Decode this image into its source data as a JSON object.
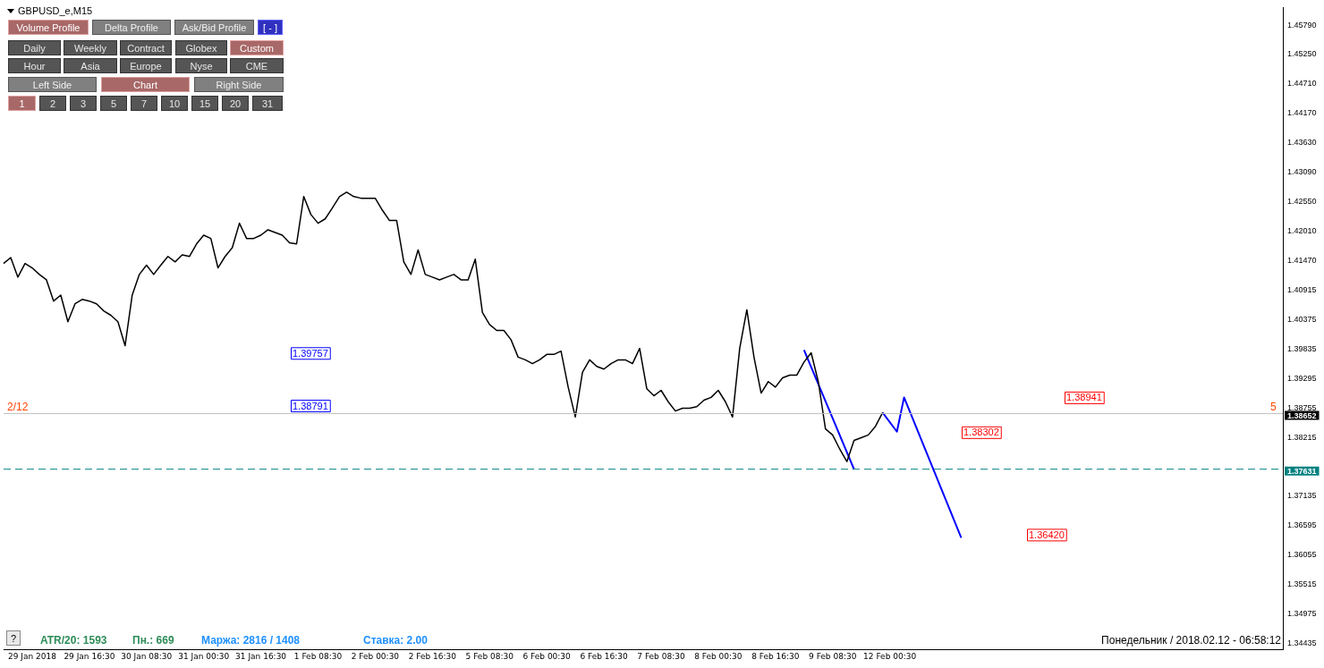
{
  "chart_data": {
    "type": "line",
    "categories": [
      null,
      null,
      null,
      null,
      "29 Jan 2018",
      null,
      null,
      null,
      null,
      null,
      null,
      null,
      "29 Jan 16:30",
      null,
      null,
      null,
      null,
      null,
      null,
      null,
      "30 Jan 08:30",
      null,
      null,
      null,
      null,
      null,
      null,
      null,
      "31 Jan 00:30",
      null,
      null,
      null,
      null,
      null,
      null,
      null,
      "31 Jan 16:30",
      null,
      null,
      null,
      null,
      null,
      null,
      null,
      "1 Feb 08:30",
      null,
      null,
      null,
      null,
      null,
      null,
      null,
      "2 Feb 00:30",
      null,
      null,
      null,
      null,
      null,
      null,
      null,
      "2 Feb 16:30",
      null,
      null,
      null,
      null,
      null,
      null,
      null,
      "5 Feb 08:30",
      null,
      null,
      null,
      null,
      null,
      null,
      null,
      "6 Feb 00:30",
      null,
      null,
      null,
      null,
      null,
      null,
      null,
      "6 Feb 16:30",
      null,
      null,
      null,
      null,
      null,
      null,
      null,
      "7 Feb 08:30",
      null,
      null,
      null,
      null,
      null,
      null,
      null,
      "8 Feb 00:30",
      null,
      null,
      null,
      null,
      null,
      null,
      null,
      "8 Feb 16:30",
      null,
      null,
      null,
      null,
      null,
      null,
      null,
      "9 Feb 08:30",
      null,
      null,
      null,
      null,
      null,
      null,
      null,
      "12 Feb 00:30",
      null,
      null,
      null,
      null,
      null,
      null,
      null,
      null,
      null,
      null,
      null,
      null,
      null,
      null,
      null,
      null,
      null,
      null,
      null,
      null,
      null,
      null,
      null,
      null,
      null,
      null,
      null,
      null,
      null,
      null,
      null,
      null,
      null,
      null,
      null,
      null,
      null,
      null,
      null,
      null,
      null,
      null,
      null,
      null,
      null,
      null,
      null,
      null,
      null,
      null,
      null,
      null,
      null,
      null,
      null
    ],
    "series": [
      {
        "color": "#000000",
        "values": [
          1.4141,
          1.4152,
          1.4116,
          1.4141,
          1.4133,
          1.4121,
          1.4111,
          1.4072,
          1.4083,
          1.4034,
          1.4067,
          1.4075,
          1.4072,
          1.4067,
          1.4054,
          1.4046,
          1.4034,
          1.399,
          1.4083,
          1.4121,
          1.4138,
          1.4121,
          1.4138,
          1.4154,
          1.4144,
          1.4157,
          1.4154,
          1.4177,
          1.4193,
          1.4187,
          1.4133,
          1.4154,
          1.417,
          1.4215,
          1.4187,
          1.4187,
          1.4193,
          1.4203,
          1.4198,
          1.4193,
          1.4179,
          1.4177,
          1.4264,
          1.4231,
          1.4215,
          1.4223,
          1.4243,
          1.4264,
          1.4272,
          1.4264,
          1.4261,
          1.4261,
          1.4261,
          1.4239,
          1.422,
          1.422,
          1.4144,
          1.4121,
          1.4166,
          1.4121,
          1.4116,
          1.4111,
          1.4116,
          1.4121,
          1.4111,
          1.4111,
          1.4149,
          1.4051,
          1.4029,
          1.4018,
          1.4018,
          1.4001,
          1.3969,
          1.3964,
          1.3957,
          1.3964,
          1.3974,
          1.3974,
          1.398,
          1.3914,
          1.3859,
          1.3941,
          1.3964,
          1.3952,
          1.3947,
          1.3957,
          1.3964,
          1.3964,
          1.3957,
          1.3985,
          1.3911,
          1.3898,
          1.3908,
          1.3887,
          1.387,
          1.3875,
          1.3875,
          1.3878,
          1.389,
          1.3895,
          1.3908,
          1.3887,
          1.3859,
          1.3985,
          1.4056,
          1.3969,
          1.3903,
          1.3924,
          1.3914,
          1.3931,
          1.3936,
          1.3936,
          1.396,
          1.3977,
          1.3924,
          1.3837,
          1.3826,
          1.38,
          1.3777,
          1.3816,
          1.3821,
          1.3826,
          1.3842,
          1.3867,
          null,
          null,
          null,
          null,
          null,
          null,
          null,
          null,
          null,
          null,
          null,
          null,
          null,
          null,
          null,
          null,
          null,
          null,
          null,
          null,
          null,
          null,
          null,
          null,
          null,
          null,
          null,
          null,
          null,
          null,
          null,
          null,
          null,
          null,
          null,
          null,
          null,
          null,
          null,
          null,
          null,
          null,
          null,
          null,
          null,
          null,
          null,
          null,
          null,
          null,
          null,
          null,
          null,
          null,
          null,
          null
        ]
      },
      {
        "color": "#0000ff",
        "values": [
          null,
          null,
          null,
          null,
          null,
          null,
          null,
          null,
          null,
          null,
          null,
          null,
          null,
          null,
          null,
          null,
          null,
          null,
          null,
          null,
          null,
          null,
          null,
          null,
          null,
          null,
          null,
          null,
          null,
          null,
          null,
          null,
          null,
          null,
          null,
          null,
          null,
          null,
          null,
          null,
          null,
          null,
          null,
          null,
          null,
          null,
          null,
          null,
          null,
          null,
          null,
          null,
          null,
          null,
          null,
          null,
          null,
          null,
          null,
          null,
          null,
          null,
          null,
          null,
          null,
          null,
          null,
          null,
          null,
          null,
          null,
          null,
          null,
          null,
          null,
          null,
          null,
          null,
          null,
          null,
          null,
          null,
          null,
          null,
          null,
          null,
          null,
          null,
          null,
          null,
          null,
          null,
          null,
          null,
          null,
          null,
          null,
          null,
          null,
          null,
          null,
          null,
          null,
          null,
          null,
          null,
          null,
          null,
          null,
          null,
          null,
          null,
          1.3982,
          null,
          null,
          null,
          null,
          null,
          null,
          1.3763,
          null,
          null,
          null,
          null,
          null,
          null,
          null,
          null,
          null,
          null,
          null,
          null,
          null,
          null,
          null,
          null,
          null,
          null,
          null,
          null,
          null,
          null,
          null,
          null,
          null,
          null,
          null,
          null,
          null,
          null,
          null,
          null,
          null,
          null,
          null,
          null,
          null,
          null,
          null,
          null,
          null,
          null,
          null,
          null,
          null,
          null,
          null,
          null,
          null,
          null,
          null,
          null,
          null,
          null,
          null,
          null,
          null,
          null,
          null,
          null
        ]
      },
      {
        "color": "#0000ff",
        "values": [
          null,
          null,
          null,
          null,
          null,
          null,
          null,
          null,
          null,
          null,
          null,
          null,
          null,
          null,
          null,
          null,
          null,
          null,
          null,
          null,
          null,
          null,
          null,
          null,
          null,
          null,
          null,
          null,
          null,
          null,
          null,
          null,
          null,
          null,
          null,
          null,
          null,
          null,
          null,
          null,
          null,
          null,
          null,
          null,
          null,
          null,
          null,
          null,
          null,
          null,
          null,
          null,
          null,
          null,
          null,
          null,
          null,
          null,
          null,
          null,
          null,
          null,
          null,
          null,
          null,
          null,
          null,
          null,
          null,
          null,
          null,
          null,
          null,
          null,
          null,
          null,
          null,
          null,
          null,
          null,
          null,
          null,
          null,
          null,
          null,
          null,
          null,
          null,
          null,
          null,
          null,
          null,
          null,
          null,
          null,
          null,
          null,
          null,
          null,
          null,
          null,
          null,
          null,
          null,
          null,
          null,
          null,
          null,
          null,
          null,
          null,
          null,
          null,
          null,
          null,
          null,
          null,
          null,
          null,
          null,
          null,
          null,
          null,
          1.3867,
          null,
          1.3832,
          1.3895,
          null,
          null,
          null,
          null,
          null,
          null,
          null,
          1.3637,
          null,
          null,
          null,
          null,
          null,
          null,
          null,
          null,
          null,
          null,
          null,
          null,
          null,
          null,
          null,
          null,
          null,
          null,
          null,
          null,
          null,
          null,
          null,
          null,
          null,
          null,
          null,
          null,
          null,
          null,
          null,
          null,
          null,
          null,
          null,
          null,
          null,
          null,
          null,
          null,
          null,
          null,
          null,
          null,
          null
        ]
      }
    ],
    "ylim": [
      1.3432,
      1.4612
    ],
    "yticks": [
      {
        "value": 1.4579,
        "label": "1.45790"
      },
      {
        "value": 1.4525,
        "label": "1.45250"
      },
      {
        "value": 1.4471,
        "label": "1.44710"
      },
      {
        "value": 1.4417,
        "label": "1.44170"
      },
      {
        "value": 1.4363,
        "label": "1.43630"
      },
      {
        "value": 1.4309,
        "label": "1.43090"
      },
      {
        "value": 1.4255,
        "label": "1.42550"
      },
      {
        "value": 1.4201,
        "label": "1.42010"
      },
      {
        "value": 1.4147,
        "label": "1.41470"
      },
      {
        "value": 1.40915,
        "label": "1.40915"
      },
      {
        "value": 1.40375,
        "label": "1.40375"
      },
      {
        "value": 1.39835,
        "label": "1.39835"
      },
      {
        "value": 1.39295,
        "label": "1.39295"
      },
      {
        "value": 1.38755,
        "label": "1.38755"
      },
      {
        "value": 1.38215,
        "label": "1.38215"
      },
      {
        "value": 1.37675,
        "label": null
      },
      {
        "value": 1.37135,
        "label": "1.37135"
      },
      {
        "value": 1.36595,
        "label": "1.36595"
      },
      {
        "value": 1.36055,
        "label": "1.36055"
      },
      {
        "value": 1.35515,
        "label": "1.35515"
      },
      {
        "value": 1.34975,
        "label": "1.34975"
      },
      {
        "value": 1.34435,
        "label": "1.34435"
      }
    ],
    "ref_lines": [
      {
        "axis": "y",
        "value": 1.38652,
        "label": "1.38652",
        "color": "#c0c0c0",
        "line_style": "solid"
      },
      {
        "axis": "y",
        "value": 1.37631,
        "label": "1.37631",
        "color": "#008080",
        "line_style": "dashed"
      }
    ],
    "annotations": [
      "GBPUSD_e,M15",
      "Volume Profile",
      "Delta Profile",
      "Ask/Bid Profile",
      "[ - ]",
      "Daily",
      "Weekly",
      "Contract",
      "Globex",
      "Custom",
      "Hour",
      "Asia",
      "Europe",
      "Nyse",
      "CME",
      "Left Side",
      "Chart",
      "Right Side",
      "1",
      "2",
      "3",
      "5",
      "7",
      "10",
      "15",
      "20",
      "31",
      "?",
      "2/12",
      "5",
      "ATR/20: 1593",
      "Пн.: 669",
      "Маржа: 2816 / 1408",
      "Ставка: 2.00",
      "Понедельник / 2018.02.12 - 06:58:12",
      {
        "text": "1.39757",
        "y": 1.39757
      },
      {
        "text": "1.38791",
        "y": 1.38791
      },
      {
        "text": "1.38941",
        "y": 1.38941
      },
      {
        "text": "1.38302",
        "y": 1.38302
      },
      {
        "text": "1.36420",
        "y": 1.3642
      }
    ],
    "marker": "none",
    "line_style": "solid",
    "legend": false
  }
}
